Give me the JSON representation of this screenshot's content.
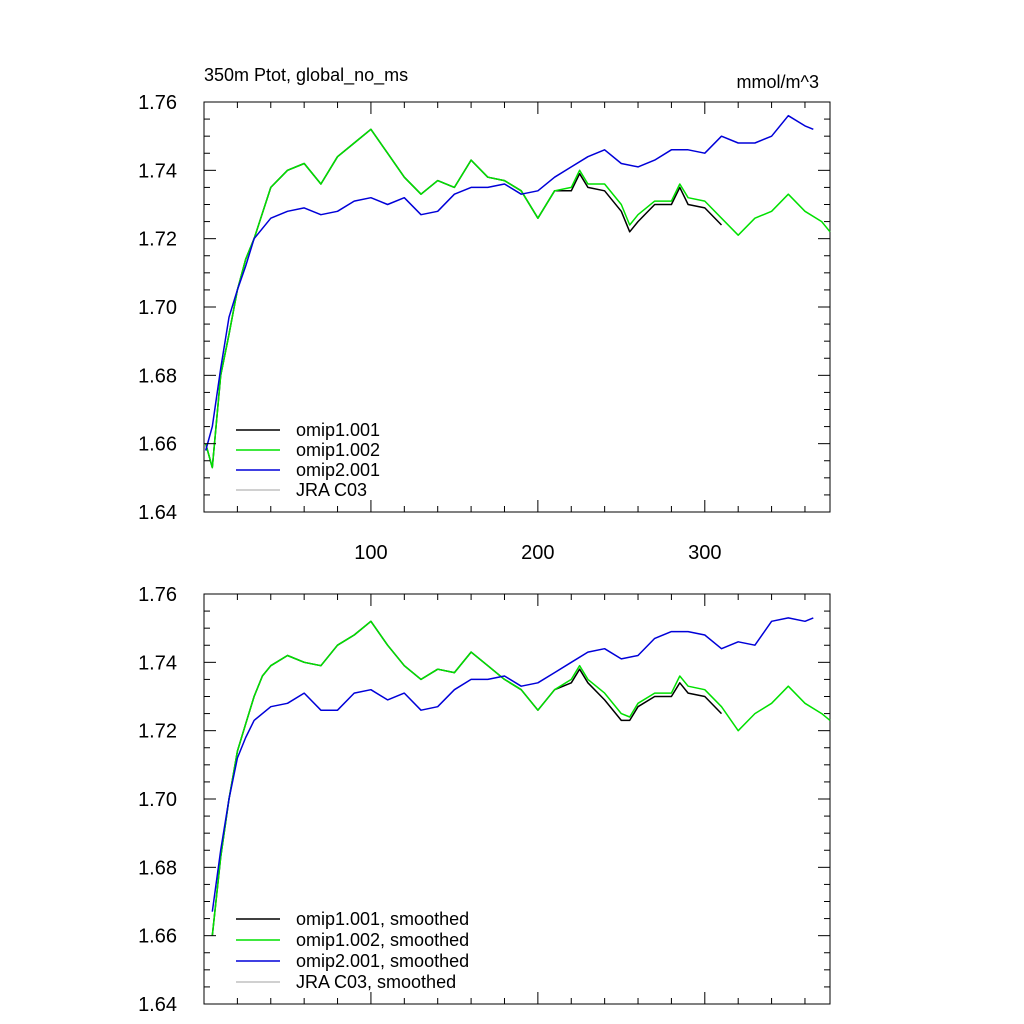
{
  "chart_data": [
    {
      "type": "line",
      "title": "350m Ptot, global_no_ms",
      "units_label": "mmol/m^3",
      "xlim": [
        0,
        375
      ],
      "ylim": [
        1.64,
        1.76
      ],
      "yticks": [
        "1.64",
        "1.66",
        "1.68",
        "1.70",
        "1.72",
        "1.74",
        "1.76"
      ],
      "xticks": [
        "100",
        "200",
        "300"
      ],
      "grid": false,
      "legend_position": "bottom-left",
      "series": [
        {
          "name": "omip1.001",
          "color": "#000000",
          "x": [
            1,
            5,
            10,
            15,
            20,
            25,
            30,
            40,
            50,
            60,
            70,
            80,
            90,
            100,
            110,
            120,
            130,
            140,
            150,
            160,
            170,
            180,
            190,
            200,
            210,
            220,
            225,
            230,
            240,
            250,
            255,
            260,
            270,
            280,
            285,
            290,
            300,
            310
          ],
          "y": [
            1.66,
            1.653,
            1.68,
            1.692,
            1.705,
            1.714,
            1.72,
            1.735,
            1.74,
            1.742,
            1.736,
            1.744,
            1.748,
            1.752,
            1.745,
            1.738,
            1.733,
            1.737,
            1.735,
            1.743,
            1.738,
            1.737,
            1.734,
            1.726,
            1.734,
            1.734,
            1.739,
            1.735,
            1.734,
            1.728,
            1.722,
            1.725,
            1.73,
            1.73,
            1.735,
            1.73,
            1.729,
            1.724
          ]
        },
        {
          "name": "omip1.002",
          "color": "#00e000",
          "x": [
            1,
            5,
            10,
            15,
            20,
            25,
            30,
            40,
            50,
            60,
            70,
            80,
            90,
            100,
            110,
            120,
            130,
            140,
            150,
            160,
            170,
            180,
            190,
            200,
            210,
            220,
            225,
            230,
            240,
            250,
            255,
            260,
            270,
            280,
            285,
            290,
            300,
            310,
            320,
            330,
            340,
            350,
            360,
            370,
            375
          ],
          "y": [
            1.66,
            1.653,
            1.68,
            1.692,
            1.705,
            1.714,
            1.72,
            1.735,
            1.74,
            1.742,
            1.736,
            1.744,
            1.748,
            1.752,
            1.745,
            1.738,
            1.733,
            1.737,
            1.735,
            1.743,
            1.738,
            1.737,
            1.734,
            1.726,
            1.734,
            1.735,
            1.74,
            1.736,
            1.736,
            1.73,
            1.724,
            1.727,
            1.731,
            1.731,
            1.736,
            1.732,
            1.731,
            1.726,
            1.721,
            1.726,
            1.728,
            1.733,
            1.728,
            1.725,
            1.722
          ]
        },
        {
          "name": "omip2.001",
          "color": "#0000d8",
          "x": [
            1,
            5,
            10,
            15,
            20,
            25,
            30,
            40,
            50,
            60,
            70,
            80,
            90,
            100,
            110,
            120,
            130,
            140,
            150,
            160,
            170,
            180,
            190,
            200,
            210,
            220,
            230,
            240,
            250,
            260,
            270,
            280,
            290,
            300,
            310,
            320,
            330,
            340,
            350,
            360,
            365
          ],
          "y": [
            1.658,
            1.665,
            1.682,
            1.697,
            1.705,
            1.712,
            1.72,
            1.726,
            1.728,
            1.729,
            1.727,
            1.728,
            1.731,
            1.732,
            1.73,
            1.732,
            1.727,
            1.728,
            1.733,
            1.735,
            1.735,
            1.736,
            1.733,
            1.734,
            1.738,
            1.741,
            1.744,
            1.746,
            1.742,
            1.741,
            1.743,
            1.746,
            1.746,
            1.745,
            1.75,
            1.748,
            1.748,
            1.75,
            1.756,
            1.753,
            1.752
          ]
        },
        {
          "name": "JRA C03",
          "color": "#c0c0c0",
          "x": [],
          "y": []
        }
      ]
    },
    {
      "type": "line",
      "xlim": [
        0,
        375
      ],
      "ylim": [
        1.64,
        1.76
      ],
      "yticks": [
        "1.64",
        "1.66",
        "1.68",
        "1.70",
        "1.72",
        "1.74",
        "1.76"
      ],
      "grid": false,
      "legend_position": "bottom-left",
      "series": [
        {
          "name": "omip1.001, smoothed",
          "color": "#000000",
          "x": [
            5,
            10,
            15,
            20,
            25,
            30,
            35,
            40,
            50,
            60,
            70,
            80,
            90,
            100,
            110,
            120,
            130,
            140,
            150,
            160,
            170,
            180,
            190,
            200,
            210,
            220,
            225,
            230,
            240,
            250,
            255,
            260,
            270,
            280,
            285,
            290,
            300,
            310
          ],
          "y": [
            1.66,
            1.683,
            1.7,
            1.714,
            1.722,
            1.73,
            1.736,
            1.739,
            1.742,
            1.74,
            1.739,
            1.745,
            1.748,
            1.752,
            1.745,
            1.739,
            1.735,
            1.738,
            1.737,
            1.743,
            1.739,
            1.735,
            1.732,
            1.726,
            1.732,
            1.734,
            1.738,
            1.734,
            1.729,
            1.723,
            1.723,
            1.727,
            1.73,
            1.73,
            1.734,
            1.731,
            1.73,
            1.725
          ]
        },
        {
          "name": "omip1.002, smoothed",
          "color": "#00e000",
          "x": [
            5,
            10,
            15,
            20,
            25,
            30,
            35,
            40,
            50,
            60,
            70,
            80,
            90,
            100,
            110,
            120,
            130,
            140,
            150,
            160,
            170,
            180,
            190,
            200,
            210,
            220,
            225,
            230,
            240,
            250,
            255,
            260,
            270,
            280,
            285,
            290,
            300,
            310,
            320,
            330,
            340,
            350,
            360,
            370,
            375
          ],
          "y": [
            1.66,
            1.683,
            1.7,
            1.714,
            1.722,
            1.73,
            1.736,
            1.739,
            1.742,
            1.74,
            1.739,
            1.745,
            1.748,
            1.752,
            1.745,
            1.739,
            1.735,
            1.738,
            1.737,
            1.743,
            1.739,
            1.735,
            1.732,
            1.726,
            1.732,
            1.735,
            1.739,
            1.735,
            1.731,
            1.725,
            1.724,
            1.728,
            1.731,
            1.731,
            1.736,
            1.733,
            1.732,
            1.727,
            1.72,
            1.725,
            1.728,
            1.733,
            1.728,
            1.725,
            1.723
          ]
        },
        {
          "name": "omip2.001, smoothed",
          "color": "#0000d8",
          "x": [
            5,
            10,
            15,
            20,
            25,
            30,
            40,
            50,
            60,
            70,
            80,
            90,
            100,
            110,
            120,
            130,
            140,
            150,
            160,
            170,
            180,
            190,
            200,
            210,
            220,
            230,
            240,
            250,
            260,
            270,
            280,
            290,
            300,
            310,
            320,
            330,
            340,
            350,
            360,
            365
          ],
          "y": [
            1.667,
            1.685,
            1.7,
            1.712,
            1.718,
            1.723,
            1.727,
            1.728,
            1.731,
            1.726,
            1.726,
            1.731,
            1.732,
            1.729,
            1.731,
            1.726,
            1.727,
            1.732,
            1.735,
            1.735,
            1.736,
            1.733,
            1.734,
            1.737,
            1.74,
            1.743,
            1.744,
            1.741,
            1.742,
            1.747,
            1.749,
            1.749,
            1.748,
            1.744,
            1.746,
            1.745,
            1.752,
            1.753,
            1.752,
            1.753
          ]
        },
        {
          "name": "JRA C03, smoothed",
          "color": "#c0c0c0",
          "x": [],
          "y": []
        }
      ]
    }
  ]
}
